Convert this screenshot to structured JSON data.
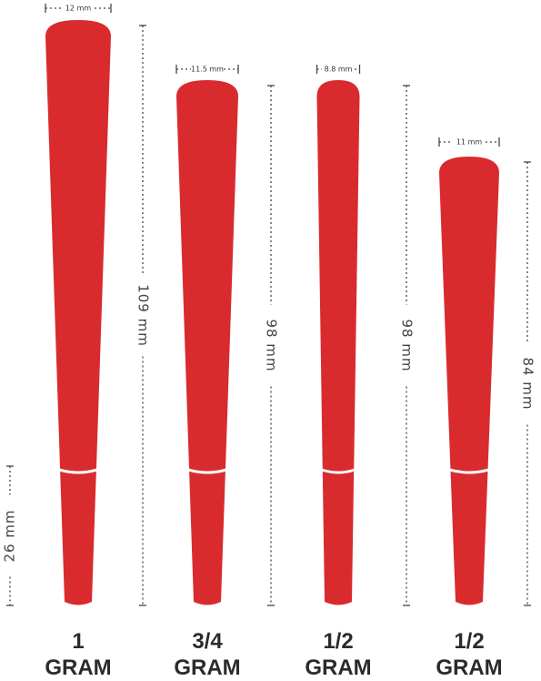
{
  "cones": [
    {
      "width": "12 mm",
      "length": "109 mm",
      "size": "1",
      "unit": "GRAM"
    },
    {
      "width": "11.5 mm",
      "length": "98 mm",
      "size": "3/4",
      "unit": "GRAM"
    },
    {
      "width": "8.8 mm",
      "length": "98 mm",
      "size": "1/2",
      "unit": "GRAM"
    },
    {
      "width": "11 mm",
      "length": "84 mm",
      "size": "1/2",
      "unit": "GRAM"
    }
  ],
  "filter_length": "26 mm"
}
